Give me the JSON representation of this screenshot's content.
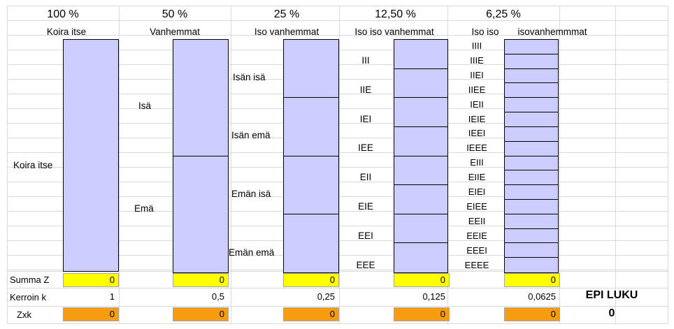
{
  "header": {
    "percents": [
      "100 %",
      "50 %",
      "25 %",
      "12,50 %",
      "6,25 %"
    ],
    "subtitles": [
      "Koira itse",
      "Vanhemmat",
      "Iso vanhemmat",
      "Iso iso vanhemmat",
      "Iso iso",
      "isovanhemmmat"
    ]
  },
  "pedigree": {
    "self": "Koira itse",
    "parents": [
      "Isä",
      "Emä"
    ],
    "grandparents": [
      "Isän isä",
      "Isän emä",
      "Emän isä",
      "Emän emä"
    ],
    "great_grandparents": [
      "III",
      "IIE",
      "IEI",
      "IEE",
      "EII",
      "EIE",
      "EEI",
      "EEE"
    ],
    "great_great_grandparents": [
      "IIII",
      "IIIE",
      "IIEI",
      "IIEE",
      "IEII",
      "IEIE",
      "IEEI",
      "IEEE",
      "EIII",
      "EIIE",
      "EIEI",
      "EIEE",
      "EEII",
      "EEIE",
      "EEEI",
      "EEEE"
    ]
  },
  "rows": {
    "summa_label": "Summa Z",
    "summa_values": [
      "0",
      "0",
      "0",
      "0",
      "0"
    ],
    "kerroin_label": "Kerroin k",
    "kerroin_values": [
      "1",
      "0,5",
      "0,25",
      "0,125",
      "0,0625"
    ],
    "zxk_label": "Zxk",
    "zxk_values": [
      "0",
      "0",
      "0",
      "0",
      "0"
    ]
  },
  "epi": {
    "label": "EPI LUKU",
    "value": "0"
  },
  "colors": {
    "box_fill": "#ccccff",
    "summa_fill": "#ffff00",
    "zxk_fill": "#f79b0f",
    "gridline": "#d9d9d9"
  }
}
